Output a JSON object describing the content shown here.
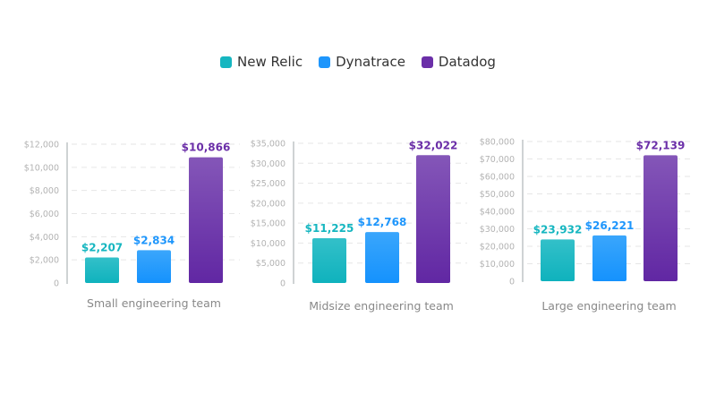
{
  "legend": [
    {
      "name": "New Relic",
      "color": "#16b6c0"
    },
    {
      "name": "Dynatrace",
      "color": "#1e96fc"
    },
    {
      "name": "Datadog",
      "color": "#6b2fa8"
    }
  ],
  "chart_data": [
    {
      "type": "bar",
      "xlabel": "Small engineering team",
      "categories": [
        "New Relic",
        "Dynatrace",
        "Datadog"
      ],
      "values": [
        2207,
        2834,
        10866
      ],
      "data_labels": [
        "$2,207",
        "$2,834",
        "$10,866"
      ],
      "ylim": [
        0,
        12000
      ],
      "yticks": [
        "0",
        "$2,000",
        "$4,000",
        "$6,000",
        "$8,000",
        "$10,000",
        "$12,000"
      ],
      "grid": true
    },
    {
      "type": "bar",
      "xlabel": "Midsize engineering team",
      "categories": [
        "New Relic",
        "Dynatrace",
        "Datadog"
      ],
      "values": [
        11225,
        12768,
        32022
      ],
      "data_labels": [
        "$11,225",
        "$12,768",
        "$32,022"
      ],
      "ylim": [
        0,
        35000
      ],
      "yticks": [
        "0",
        "$5,000",
        "$10,000",
        "$15,000",
        "$20,000",
        "$25,000",
        "$30,000",
        "$35,000"
      ],
      "grid": true
    },
    {
      "type": "bar",
      "xlabel": "Large engineering team",
      "categories": [
        "New Relic",
        "Dynatrace",
        "Datadog"
      ],
      "values": [
        23932,
        26221,
        72139
      ],
      "data_labels": [
        "$23,932",
        "$26,221",
        "$72,139"
      ],
      "ylim": [
        0,
        80000
      ],
      "yticks": [
        "0",
        "$10,000",
        "$20,000",
        "$30,000",
        "$40,000",
        "$50,000",
        "$60,000",
        "$70,000",
        "$80,000"
      ],
      "grid": true
    }
  ]
}
